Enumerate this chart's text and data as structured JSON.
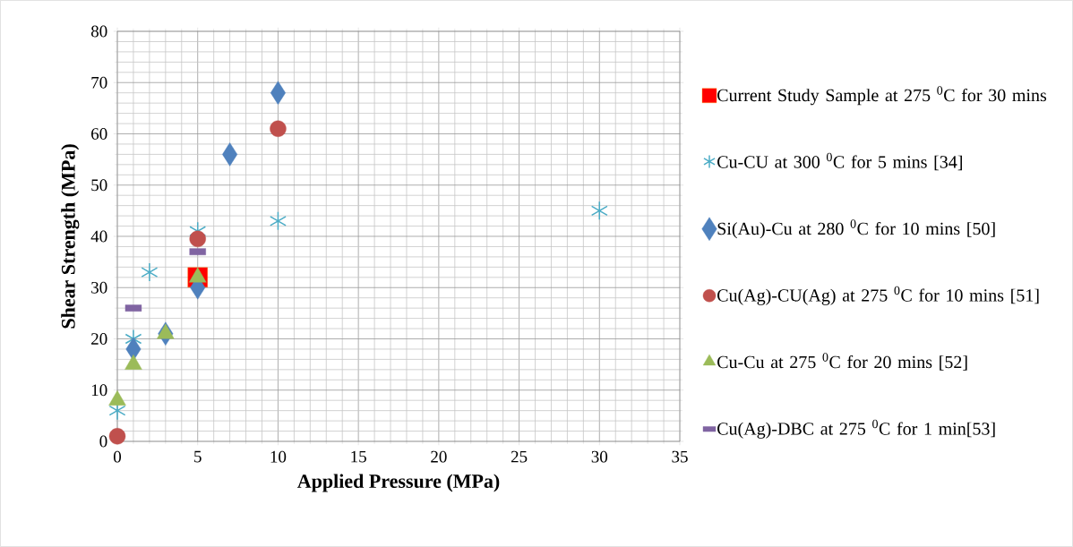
{
  "chart_data": {
    "type": "scatter",
    "xlabel": "Applied Pressure (MPa)",
    "ylabel": "Shear Strength (MPa)",
    "xlim": [
      0,
      35
    ],
    "ylim": [
      0,
      80
    ],
    "xticks": [
      0,
      5,
      10,
      15,
      20,
      25,
      30,
      35
    ],
    "yticks": [
      0,
      10,
      20,
      30,
      40,
      50,
      60,
      70,
      80
    ],
    "grid": true,
    "legend": "right",
    "series": [
      {
        "name": "Current Study Sample at 275 $^{0}$C for 30 mins",
        "color": "#ff0000",
        "marker": "square",
        "x": [
          5
        ],
        "values": [
          32
        ]
      },
      {
        "name": "Cu-CU at 300  $^{0}$C for 5 mins [34]",
        "color": "#4bacc6",
        "marker": "cross",
        "x": [
          0,
          1,
          2,
          5,
          10,
          30
        ],
        "values": [
          6,
          20,
          33,
          41,
          43,
          45
        ]
      },
      {
        "name": "Si(Au)-Cu at 280 $^{0}$C for  10 mins [50]",
        "color": "#4f81bd",
        "marker": "diamond",
        "x": [
          1,
          3,
          5,
          7,
          10
        ],
        "values": [
          18,
          21,
          30,
          56,
          68
        ]
      },
      {
        "name": "Cu(Ag)-CU(Ag) at 275 $^{0}$C for  10 mins [51]",
        "color": "#c0504d",
        "marker": "circle",
        "x": [
          0,
          5,
          10
        ],
        "values": [
          1,
          39.5,
          61
        ]
      },
      {
        "name": "Cu-Cu at 275 $^{0}$C for  20 mins [52]",
        "color": "#9bbb59",
        "marker": "triangle",
        "x": [
          0,
          1,
          3,
          5
        ],
        "values": [
          8,
          15,
          21,
          32
        ]
      },
      {
        "name": "Cu(Ag)-DBC at 275 $^{0}$C for 1 min[53]",
        "color": "#8064a2",
        "x": [
          1,
          5
        ],
        "values": [
          26,
          37
        ]
      }
    ]
  }
}
